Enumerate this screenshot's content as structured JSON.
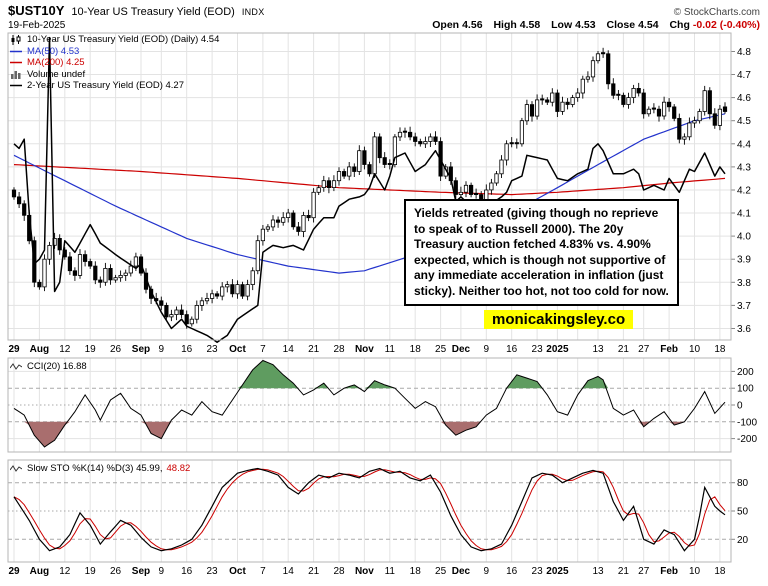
{
  "header": {
    "symbol": "$UST10Y",
    "title": "10-Year US Treasury Yield (EOD)",
    "exchange": "INDX",
    "source": "© StockCharts.com",
    "date": "19-Feb-2025",
    "quote": [
      {
        "label": "Open",
        "value": "4.56"
      },
      {
        "label": "High",
        "value": "4.58"
      },
      {
        "label": "Low",
        "value": "4.53"
      },
      {
        "label": "Close",
        "value": "4.54"
      },
      {
        "label": "Chg",
        "value": "-0.02 (-0.40%)"
      }
    ]
  },
  "legend_main": {
    "series": "10-Year US Treasury Yield (EOD) (Daily) 4.54",
    "ma50": "MA(50) 4.53",
    "ma200": "MA(200) 4.25",
    "volume": "Volume undef",
    "overlay": "2-Year US Treasury Yield (EOD) 4.27"
  },
  "legend_cci": "CCI(20) 16.88",
  "legend_stoch": {
    "k_part": "Slow STO %K(14) %D(3) 45.99,",
    "d_part": "48.82"
  },
  "annotation": {
    "lines": [
      "Yields retreated (giving though no reprieve",
      "to speak of to Russell 2000). The 20y",
      "Treasury auction fetched 4.83% vs. 4.90%",
      "expected, which is though not supportive of",
      "any immediate acceleration in inflation (just",
      "sticky). Neither too hot, not too cold for now."
    ]
  },
  "watermark": "monicakingsley.co",
  "colors": {
    "ma50_blue": "#2333cc",
    "ma200_red": "#cc0000",
    "candle": "#000000",
    "overlay_2y": "#000000",
    "cci_fill_positive": "#5f9c60",
    "cci_fill_negative": "#a96e6e",
    "stoch_d_red": "#cc0000",
    "grid": "#e3e3e3",
    "panel_border": "#b5b5b5",
    "watermark_bg": "#ffff00",
    "negative_change": "#cc0000"
  },
  "chart_data": {
    "type": "candlestick",
    "title": "$UST10Y 10-Year US Treasury Yield (EOD) INDX",
    "date_range": "29 Jul 2024 - 19 Feb 2025",
    "y_ticks_main": [
      4.8,
      4.7,
      4.6,
      4.5,
      4.4,
      4.3,
      4.2,
      4.1,
      4.0,
      3.9,
      3.8,
      3.7,
      3.6
    ],
    "ylim_main": [
      3.6,
      4.8
    ],
    "y_ticks_cci": [
      200,
      100,
      0,
      -100,
      -200
    ],
    "ylim_cci": [
      -200,
      200
    ],
    "y_ticks_stoch": [
      80,
      50,
      20
    ],
    "ylim_stoch": [
      0,
      100
    ],
    "x_ticks": [
      {
        "i": 0,
        "label": "29",
        "bold": true
      },
      {
        "i": 5,
        "label": "Aug",
        "bold": true
      },
      {
        "i": 10,
        "label": "12"
      },
      {
        "i": 15,
        "label": "19"
      },
      {
        "i": 20,
        "label": "26"
      },
      {
        "i": 25,
        "label": "Sep",
        "bold": true
      },
      {
        "i": 29,
        "label": "9"
      },
      {
        "i": 34,
        "label": "16"
      },
      {
        "i": 39,
        "label": "23"
      },
      {
        "i": 44,
        "label": "Oct",
        "bold": true
      },
      {
        "i": 49,
        "label": "7"
      },
      {
        "i": 54,
        "label": "14"
      },
      {
        "i": 59,
        "label": "21"
      },
      {
        "i": 64,
        "label": "28"
      },
      {
        "i": 69,
        "label": "Nov",
        "bold": true
      },
      {
        "i": 74,
        "label": "11"
      },
      {
        "i": 79,
        "label": "18"
      },
      {
        "i": 84,
        "label": "25"
      },
      {
        "i": 88,
        "label": "Dec",
        "bold": true
      },
      {
        "i": 93,
        "label": "9"
      },
      {
        "i": 98,
        "label": "16"
      },
      {
        "i": 103,
        "label": "23"
      },
      {
        "i": 107,
        "label": "2025",
        "bold": true
      },
      {
        "i": 115,
        "label": "13"
      },
      {
        "i": 120,
        "label": "21"
      },
      {
        "i": 124,
        "label": "27"
      },
      {
        "i": 129,
        "label": "Feb",
        "bold": true
      },
      {
        "i": 134,
        "label": "10"
      },
      {
        "i": 139,
        "label": "18"
      }
    ],
    "x_grid_extra": [
      111
    ],
    "bars_close": [
      4.17,
      4.14,
      4.09,
      3.98,
      3.8,
      3.78,
      3.9,
      3.96,
      3.99,
      3.94,
      3.91,
      3.85,
      3.83,
      3.92,
      3.89,
      3.87,
      3.81,
      3.8,
      3.86,
      3.81,
      3.82,
      3.83,
      3.84,
      3.87,
      3.91,
      3.84,
      3.77,
      3.73,
      3.72,
      3.7,
      3.65,
      3.66,
      3.68,
      3.66,
      3.62,
      3.64,
      3.7,
      3.72,
      3.73,
      3.75,
      3.74,
      3.78,
      3.79,
      3.75,
      3.79,
      3.74,
      3.79,
      3.85,
      3.98,
      4.03,
      4.04,
      4.07,
      4.06,
      4.08,
      4.1,
      4.04,
      4.02,
      4.09,
      4.08,
      4.19,
      4.21,
      4.24,
      4.21,
      4.24,
      4.28,
      4.26,
      4.3,
      4.28,
      4.37,
      4.31,
      4.27,
      4.43,
      4.34,
      4.31,
      4.31,
      4.43,
      4.45,
      4.45,
      4.43,
      4.41,
      4.4,
      4.41,
      4.43,
      4.41,
      4.26,
      4.3,
      4.24,
      4.18,
      4.19,
      4.22,
      4.18,
      4.18,
      4.15,
      4.2,
      4.23,
      4.27,
      4.33,
      4.4,
      4.4,
      4.4,
      4.5,
      4.57,
      4.52,
      4.59,
      4.59,
      4.58,
      4.62,
      4.54,
      4.58,
      4.57,
      4.6,
      4.62,
      4.68,
      4.69,
      4.76,
      4.79,
      4.79,
      4.66,
      4.61,
      4.61,
      4.57,
      4.6,
      4.64,
      4.62,
      4.53,
      4.55,
      4.55,
      4.52,
      4.58,
      4.56,
      4.51,
      4.42,
      4.43,
      4.49,
      4.5,
      4.54,
      4.63,
      4.53,
      4.48,
      4.55,
      4.54
    ],
    "last_bar": {
      "open": 4.56,
      "high": 4.58,
      "low": 4.53,
      "close": 4.54
    },
    "series": [
      {
        "name": "10-Year US Treasury Yield (EOD)",
        "style": "candlestick",
        "last": 4.54
      },
      {
        "name": "MA(50)",
        "style": "line",
        "color": "#2333cc",
        "last": 4.53
      },
      {
        "name": "MA(200)",
        "style": "line",
        "color": "#cc0000",
        "last": 4.25
      },
      {
        "name": "2-Year US Treasury Yield (EOD)",
        "style": "line",
        "color": "#000000",
        "last": 4.27
      },
      {
        "name": "CCI(20)",
        "panel": "cci",
        "last": 16.88
      },
      {
        "name": "Slow STO %K(14)",
        "panel": "stoch",
        "last": 45.99
      },
      {
        "name": "Slow STO %D(3)",
        "panel": "stoch",
        "color": "#cc0000",
        "last": 48.82
      }
    ],
    "ma50_anchors": [
      [
        0,
        4.35
      ],
      [
        10,
        4.24
      ],
      [
        20,
        4.13
      ],
      [
        25,
        4.08
      ],
      [
        34,
        3.99
      ],
      [
        44,
        3.92
      ],
      [
        54,
        3.87
      ],
      [
        64,
        3.84
      ],
      [
        69,
        3.85
      ],
      [
        79,
        3.92
      ],
      [
        88,
        4.0
      ],
      [
        98,
        4.1
      ],
      [
        107,
        4.21
      ],
      [
        115,
        4.31
      ],
      [
        124,
        4.42
      ],
      [
        129,
        4.46
      ],
      [
        134,
        4.5
      ],
      [
        140,
        4.53
      ]
    ],
    "ma200_anchors": [
      [
        0,
        4.31
      ],
      [
        25,
        4.28
      ],
      [
        44,
        4.25
      ],
      [
        64,
        4.21
      ],
      [
        84,
        4.19
      ],
      [
        98,
        4.18
      ],
      [
        107,
        4.19
      ],
      [
        120,
        4.21
      ],
      [
        129,
        4.23
      ],
      [
        140,
        4.25
      ]
    ],
    "ust2y_anchors": [
      [
        0,
        4.4
      ],
      [
        1,
        4.38
      ],
      [
        2,
        4.42
      ],
      [
        3,
        4.1
      ],
      [
        4,
        3.88
      ],
      [
        5,
        3.9
      ],
      [
        6,
        3.94
      ],
      [
        7,
        4.86
      ],
      [
        8,
        3.76
      ],
      [
        9,
        3.8
      ],
      [
        10,
        3.98
      ],
      [
        12,
        3.93
      ],
      [
        15,
        4.05
      ],
      [
        17,
        3.97
      ],
      [
        20,
        3.92
      ],
      [
        22,
        3.89
      ],
      [
        24,
        3.86
      ],
      [
        25,
        3.88
      ],
      [
        27,
        3.76
      ],
      [
        29,
        3.67
      ],
      [
        31,
        3.6
      ],
      [
        33,
        3.64
      ],
      [
        34,
        3.61
      ],
      [
        36,
        3.59
      ],
      [
        38,
        3.57
      ],
      [
        40,
        3.54
      ],
      [
        42,
        3.57
      ],
      [
        44,
        3.64
      ],
      [
        46,
        3.67
      ],
      [
        48,
        3.7
      ],
      [
        49,
        3.93
      ],
      [
        51,
        3.96
      ],
      [
        53,
        3.95
      ],
      [
        55,
        3.96
      ],
      [
        57,
        3.94
      ],
      [
        59,
        4.03
      ],
      [
        61,
        4.08
      ],
      [
        63,
        4.08
      ],
      [
        64,
        4.13
      ],
      [
        66,
        4.16
      ],
      [
        68,
        4.17
      ],
      [
        69,
        4.18
      ],
      [
        70,
        4.21
      ],
      [
        71,
        4.27
      ],
      [
        73,
        4.2
      ],
      [
        74,
        4.26
      ],
      [
        75,
        4.34
      ],
      [
        77,
        4.36
      ],
      [
        79,
        4.28
      ],
      [
        81,
        4.31
      ],
      [
        83,
        4.37
      ],
      [
        84,
        4.33
      ],
      [
        86,
        4.25
      ],
      [
        87,
        4.15
      ],
      [
        88,
        4.17
      ],
      [
        90,
        4.13
      ],
      [
        92,
        4.1
      ],
      [
        94,
        4.14
      ],
      [
        96,
        4.17
      ],
      [
        97,
        4.19
      ],
      [
        98,
        4.24
      ],
      [
        100,
        4.26
      ],
      [
        101,
        4.35
      ],
      [
        103,
        4.34
      ],
      [
        105,
        4.33
      ],
      [
        107,
        4.25
      ],
      [
        109,
        4.24
      ],
      [
        111,
        4.27
      ],
      [
        113,
        4.29
      ],
      [
        114,
        4.38
      ],
      [
        115,
        4.4
      ],
      [
        116,
        4.37
      ],
      [
        118,
        4.27
      ],
      [
        120,
        4.27
      ],
      [
        122,
        4.29
      ],
      [
        123,
        4.27
      ],
      [
        124,
        4.2
      ],
      [
        126,
        4.22
      ],
      [
        128,
        4.2
      ],
      [
        129,
        4.25
      ],
      [
        131,
        4.19
      ],
      [
        133,
        4.29
      ],
      [
        134,
        4.28
      ],
      [
        136,
        4.36
      ],
      [
        137,
        4.31
      ],
      [
        138,
        4.26
      ],
      [
        139,
        4.3
      ],
      [
        140,
        4.27
      ]
    ],
    "cci_anchors": [
      [
        0,
        -20
      ],
      [
        2,
        -60
      ],
      [
        4,
        -180
      ],
      [
        6,
        -250
      ],
      [
        8,
        -210
      ],
      [
        10,
        -120
      ],
      [
        12,
        -40
      ],
      [
        14,
        60
      ],
      [
        16,
        -30
      ],
      [
        17,
        -90
      ],
      [
        19,
        30
      ],
      [
        21,
        70
      ],
      [
        23,
        -20
      ],
      [
        25,
        -60
      ],
      [
        27,
        -170
      ],
      [
        29,
        -200
      ],
      [
        31,
        -90
      ],
      [
        33,
        -30
      ],
      [
        35,
        -60
      ],
      [
        37,
        20
      ],
      [
        39,
        -40
      ],
      [
        41,
        -60
      ],
      [
        43,
        30
      ],
      [
        45,
        120
      ],
      [
        47,
        210
      ],
      [
        49,
        265
      ],
      [
        51,
        240
      ],
      [
        53,
        180
      ],
      [
        55,
        130
      ],
      [
        57,
        60
      ],
      [
        59,
        90
      ],
      [
        61,
        130
      ],
      [
        63,
        60
      ],
      [
        65,
        100
      ],
      [
        67,
        120
      ],
      [
        69,
        80
      ],
      [
        71,
        145
      ],
      [
        73,
        120
      ],
      [
        75,
        100
      ],
      [
        77,
        40
      ],
      [
        79,
        -20
      ],
      [
        81,
        20
      ],
      [
        83,
        -10
      ],
      [
        85,
        -120
      ],
      [
        87,
        -180
      ],
      [
        89,
        -150
      ],
      [
        91,
        -130
      ],
      [
        93,
        -60
      ],
      [
        95,
        -20
      ],
      [
        97,
        100
      ],
      [
        99,
        180
      ],
      [
        101,
        160
      ],
      [
        103,
        140
      ],
      [
        105,
        60
      ],
      [
        107,
        -40
      ],
      [
        109,
        -60
      ],
      [
        111,
        60
      ],
      [
        113,
        145
      ],
      [
        115,
        170
      ],
      [
        116,
        150
      ],
      [
        118,
        -20
      ],
      [
        120,
        -60
      ],
      [
        122,
        -30
      ],
      [
        124,
        -130
      ],
      [
        126,
        -80
      ],
      [
        128,
        -40
      ],
      [
        130,
        -120
      ],
      [
        132,
        -100
      ],
      [
        134,
        -20
      ],
      [
        136,
        80
      ],
      [
        138,
        -50
      ],
      [
        140,
        16.88
      ]
    ],
    "stoch_k_anchors": [
      [
        0,
        65
      ],
      [
        3,
        40
      ],
      [
        5,
        20
      ],
      [
        7,
        8
      ],
      [
        9,
        12
      ],
      [
        11,
        25
      ],
      [
        13,
        48
      ],
      [
        15,
        35
      ],
      [
        17,
        15
      ],
      [
        19,
        28
      ],
      [
        21,
        40
      ],
      [
        23,
        35
      ],
      [
        25,
        22
      ],
      [
        27,
        12
      ],
      [
        29,
        8
      ],
      [
        31,
        10
      ],
      [
        33,
        14
      ],
      [
        35,
        20
      ],
      [
        37,
        35
      ],
      [
        39,
        55
      ],
      [
        41,
        75
      ],
      [
        44,
        90
      ],
      [
        46,
        93
      ],
      [
        48,
        95
      ],
      [
        50,
        92
      ],
      [
        52,
        88
      ],
      [
        54,
        75
      ],
      [
        56,
        68
      ],
      [
        58,
        80
      ],
      [
        60,
        88
      ],
      [
        62,
        85
      ],
      [
        64,
        90
      ],
      [
        66,
        88
      ],
      [
        68,
        85
      ],
      [
        70,
        92
      ],
      [
        72,
        95
      ],
      [
        74,
        90
      ],
      [
        76,
        92
      ],
      [
        78,
        85
      ],
      [
        80,
        82
      ],
      [
        82,
        88
      ],
      [
        84,
        70
      ],
      [
        86,
        45
      ],
      [
        88,
        25
      ],
      [
        90,
        12
      ],
      [
        92,
        8
      ],
      [
        94,
        10
      ],
      [
        96,
        15
      ],
      [
        98,
        35
      ],
      [
        100,
        60
      ],
      [
        102,
        85
      ],
      [
        104,
        90
      ],
      [
        106,
        88
      ],
      [
        108,
        80
      ],
      [
        110,
        85
      ],
      [
        112,
        90
      ],
      [
        114,
        93
      ],
      [
        116,
        90
      ],
      [
        118,
        60
      ],
      [
        120,
        40
      ],
      [
        122,
        55
      ],
      [
        124,
        20
      ],
      [
        126,
        15
      ],
      [
        128,
        30
      ],
      [
        130,
        25
      ],
      [
        132,
        8
      ],
      [
        134,
        20
      ],
      [
        135,
        45
      ],
      [
        136,
        75
      ],
      [
        137,
        65
      ],
      [
        138,
        55
      ],
      [
        139,
        50
      ],
      [
        140,
        45.99
      ]
    ]
  }
}
